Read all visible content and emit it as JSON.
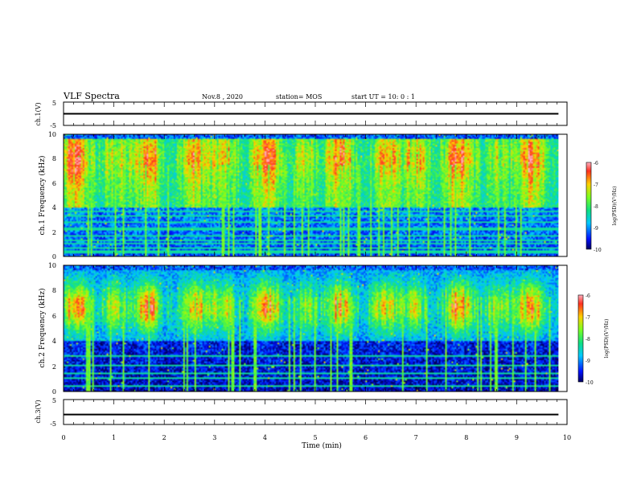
{
  "header": {
    "title": "VLF Spectra",
    "date": "Nov.8 , 2020",
    "station": "station= MOS",
    "start": "start UT = 10: 0 : 1"
  },
  "chart_data": {
    "type": "heatmap",
    "x": {
      "label": "Time (min)",
      "range": [
        0,
        10
      ],
      "ticks": [
        "0",
        "1",
        "2",
        "3",
        "4",
        "5",
        "6",
        "7",
        "8",
        "9",
        "10"
      ]
    },
    "panels": [
      {
        "name": "ch.1(V)",
        "type": "line",
        "ylim": [
          -5,
          5
        ],
        "yticks": [
          "5",
          "-5"
        ],
        "level": 0
      },
      {
        "name": "ch.1 Frequency (kHz)",
        "type": "heatmap",
        "ylim": [
          0,
          10
        ],
        "yticks": [
          "0",
          "2",
          "4",
          "6",
          "8",
          "10"
        ],
        "data_end_min": 9.83,
        "colorbar": {
          "label": "log(PSD)(V²/Hz)",
          "range": [
            -10,
            -6
          ],
          "ticks": [
            "-6",
            "-7",
            "-8",
            "-9",
            "-10"
          ]
        }
      },
      {
        "name": "ch.2 Frequency (kHz)",
        "type": "heatmap",
        "ylim": [
          0,
          10
        ],
        "yticks": [
          "0",
          "2",
          "4",
          "6",
          "8",
          "10"
        ],
        "data_end_min": 9.83,
        "colorbar": {
          "label": "log(PSD)(V²/Hz)",
          "range": [
            -10,
            -6
          ],
          "ticks": [
            "-6",
            "-7",
            "-8",
            "-9",
            "-10"
          ]
        }
      },
      {
        "name": "ch.3(V)",
        "type": "line",
        "ylim": [
          -5,
          5
        ],
        "yticks": [
          "5",
          "-5"
        ],
        "level": -1
      }
    ]
  }
}
